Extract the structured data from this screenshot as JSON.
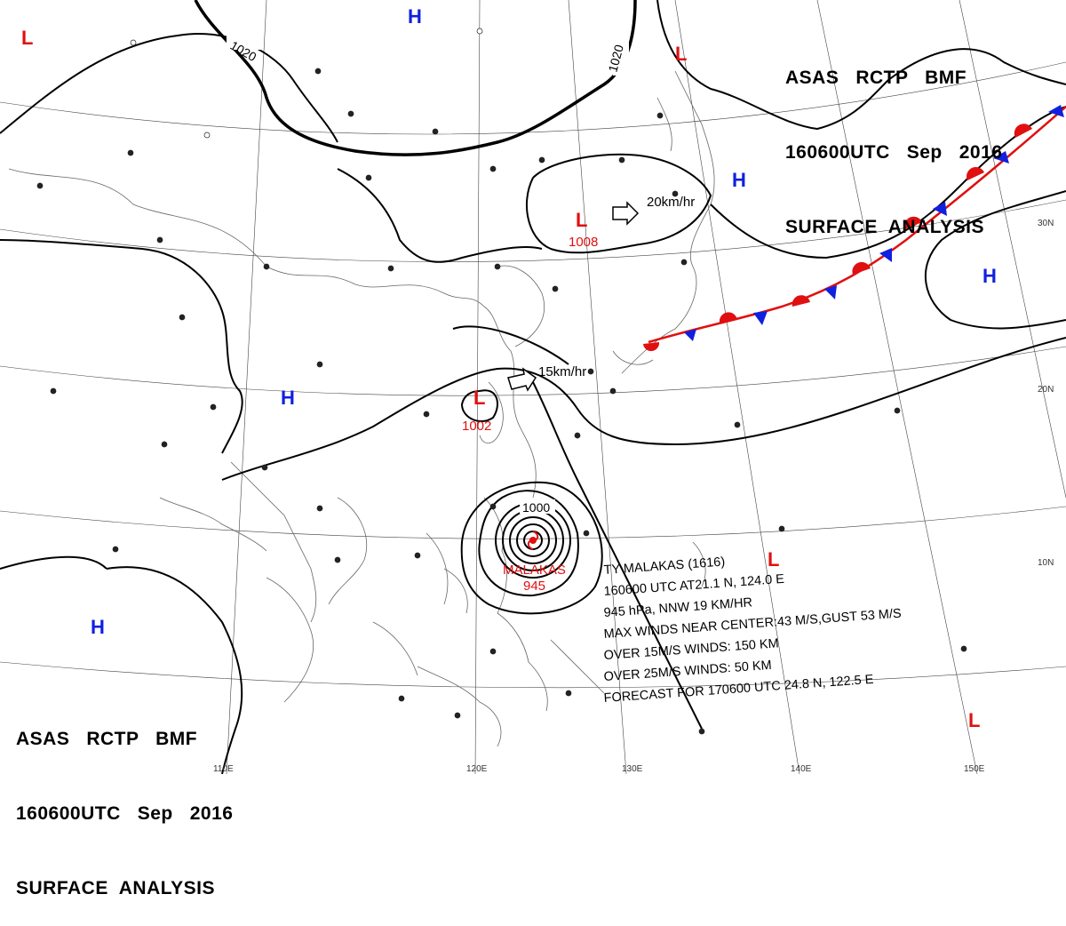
{
  "header_top": {
    "line1": "ASAS   RCTP   BMF",
    "line2": "160600UTC   Sep   2016",
    "line3": "SURFACE  ANALYSIS"
  },
  "header_bottom": {
    "line1": "ASAS   RCTP   BMF",
    "line2": "160600UTC   Sep   2016",
    "line3": "SURFACE  ANALYSIS"
  },
  "isobar_labels": {
    "i1020a": "1020",
    "i1020b": "1020",
    "i1000": "1000"
  },
  "systems": {
    "high": "H",
    "low": "L",
    "low_center_pressure_a": "1008",
    "low_center_pressure_b": "1002",
    "typhoon_name": "MALAKAS",
    "typhoon_pressure": "945"
  },
  "motion": {
    "north_low": "20km/hr",
    "south_low": "15km/hr"
  },
  "latitudes": [
    "30N",
    "20N",
    "10N"
  ],
  "longitudes": [
    "110E",
    "120E",
    "130E",
    "140E",
    "150E"
  ],
  "typhoon_info": {
    "line1": "TY  MALAKAS  (1616)",
    "line2": "160600 UTC  AT21.1 N, 124.0 E",
    "line3": "945 hPa, NNW  19 KM/HR",
    "line4": "MAX WINDS NEAR CENTER:43 M/S,GUST 53 M/S",
    "line5": "OVER 15M/S WINDS:  150 KM",
    "line6": "OVER 25M/S WINDS:  50 KM",
    "line7": "FORECAST FOR 170600 UTC 24.8 N, 122.5 E"
  },
  "colors": {
    "high": "#1020e0",
    "low": "#e01010",
    "front_warm": "#e01010",
    "front_cold": "#1020e0"
  }
}
